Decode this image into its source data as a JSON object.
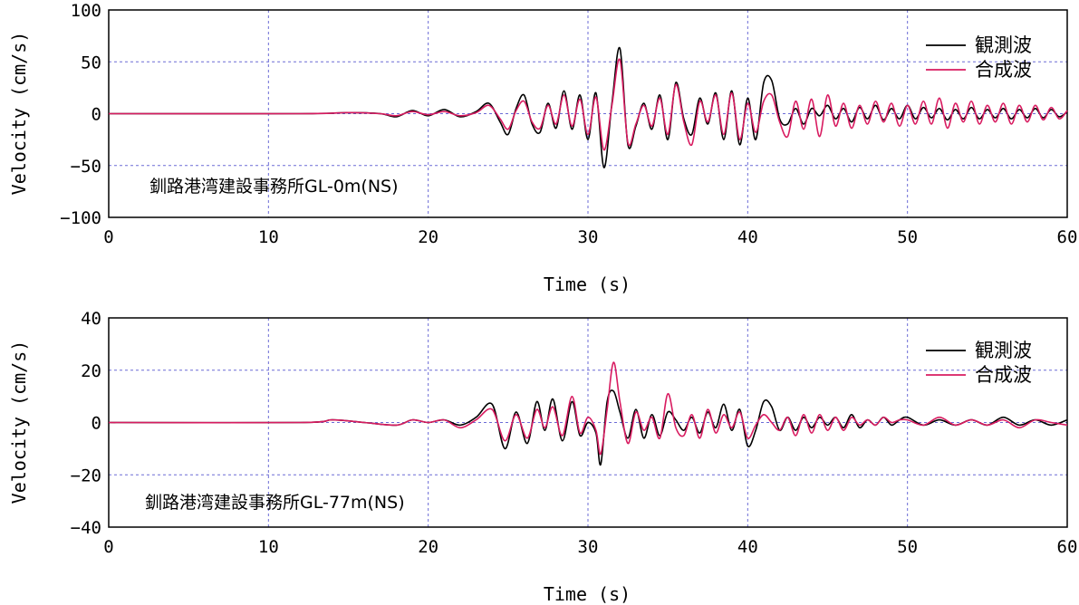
{
  "colors": {
    "observed": "#000000",
    "synthetic": "#d81b60",
    "grid": "#6b6bd6"
  },
  "chart_data": [
    {
      "type": "line",
      "xlabel": "Time (s)",
      "ylabel": "Velocity (cm/s)",
      "annotation": "釧路港湾建設事務所GL-0m(NS)",
      "xlim": [
        0,
        60
      ],
      "ylim": [
        -100,
        100
      ],
      "xticks": [
        "0",
        "10",
        "20",
        "30",
        "40",
        "50",
        "60"
      ],
      "yticks": [
        "100",
        "50",
        "0",
        "−50",
        "−100"
      ],
      "grid": true,
      "legend_position": "top-right",
      "series": [
        {
          "name": "観測波",
          "color": "#000000",
          "x": [
            0,
            12,
            15,
            17,
            18,
            19,
            20,
            21,
            22,
            23,
            23.8,
            24.5,
            25.0,
            25.5,
            26.0,
            26.5,
            27.0,
            27.5,
            28.0,
            28.5,
            29.0,
            29.5,
            30.0,
            30.5,
            31.0,
            31.5,
            32.0,
            32.5,
            33.0,
            33.5,
            34.0,
            34.5,
            35.0,
            35.5,
            36.0,
            36.5,
            37.0,
            37.5,
            38.0,
            38.5,
            39.0,
            39.5,
            40.0,
            40.5,
            41.0,
            41.5,
            42.0,
            42.5,
            43.0,
            43.5,
            44.0,
            44.5,
            45.0,
            45.5,
            46.0,
            46.5,
            47.0,
            47.5,
            48.0,
            48.5,
            49.0,
            49.5,
            50.0,
            50.5,
            51.0,
            51.5,
            52.0,
            52.5,
            53.0,
            53.5,
            54.0,
            54.5,
            55.0,
            55.5,
            56.0,
            56.5,
            57.0,
            57.5,
            58.0,
            58.5,
            59.0,
            59.5,
            60.0
          ],
          "values": [
            0,
            0,
            1,
            0,
            -3,
            3,
            -2,
            4,
            -3,
            2,
            10,
            -8,
            -20,
            5,
            18,
            -10,
            -18,
            10,
            -14,
            22,
            -15,
            18,
            -25,
            20,
            -52,
            10,
            63,
            -30,
            -12,
            10,
            -15,
            18,
            -25,
            30,
            -5,
            -20,
            15,
            -10,
            20,
            -25,
            22,
            -30,
            15,
            -25,
            30,
            32,
            -5,
            -10,
            5,
            -10,
            5,
            -2,
            8,
            -5,
            5,
            -8,
            6,
            -5,
            8,
            -6,
            5,
            -5,
            8,
            -5,
            6,
            -4,
            5,
            -6,
            4,
            -5,
            6,
            -5,
            4,
            -4,
            5,
            -5,
            4,
            -4,
            5,
            -4,
            4,
            -3,
            2
          ]
        },
        {
          "name": "合成波",
          "color": "#d81b60",
          "x": [
            0,
            12,
            15,
            17,
            18,
            19,
            20,
            21,
            22,
            23,
            23.8,
            24.5,
            25.0,
            25.5,
            26.0,
            26.5,
            27.0,
            27.5,
            28.0,
            28.5,
            29.0,
            29.5,
            30.0,
            30.5,
            31.0,
            31.5,
            32.0,
            32.5,
            33.0,
            33.5,
            34.0,
            34.5,
            35.0,
            35.5,
            36.0,
            36.5,
            37.0,
            37.5,
            38.0,
            38.5,
            39.0,
            39.5,
            40.0,
            40.5,
            41.0,
            41.5,
            42.0,
            42.5,
            43.0,
            43.5,
            44.0,
            44.5,
            45.0,
            45.5,
            46.0,
            46.5,
            47.0,
            47.5,
            48.0,
            48.5,
            49.0,
            49.5,
            50.0,
            50.5,
            51.0,
            51.5,
            52.0,
            52.5,
            53.0,
            53.5,
            54.0,
            54.5,
            55.0,
            55.5,
            56.0,
            56.5,
            57.0,
            57.5,
            58.0,
            58.5,
            59.0,
            59.5,
            60.0
          ],
          "values": [
            0,
            0,
            1,
            0,
            -2,
            2,
            -1,
            2,
            -2,
            1,
            8,
            -5,
            -15,
            3,
            12,
            -8,
            -14,
            8,
            -10,
            18,
            -12,
            14,
            -20,
            16,
            -35,
            8,
            52,
            -28,
            -10,
            8,
            -12,
            15,
            -20,
            28,
            -8,
            -30,
            12,
            -8,
            18,
            -20,
            20,
            -25,
            10,
            -18,
            12,
            18,
            -8,
            -22,
            12,
            -15,
            14,
            -22,
            18,
            -12,
            10,
            -14,
            8,
            -10,
            12,
            -8,
            10,
            -12,
            8,
            -10,
            12,
            -10,
            15,
            -14,
            10,
            -8,
            12,
            -10,
            8,
            -8,
            10,
            -10,
            8,
            -8,
            8,
            -6,
            6,
            -5,
            3
          ]
        }
      ]
    },
    {
      "type": "line",
      "xlabel": "Time (s)",
      "ylabel": "Velocity (cm/s)",
      "annotation": "釧路港湾建設事務所GL-77m(NS)",
      "xlim": [
        0,
        60
      ],
      "ylim": [
        -40,
        40
      ],
      "xticks": [
        "0",
        "10",
        "20",
        "30",
        "40",
        "50",
        "60"
      ],
      "yticks": [
        "40",
        "20",
        "0",
        "−20",
        "−40"
      ],
      "grid": true,
      "legend_position": "top-right",
      "series": [
        {
          "name": "観測波",
          "color": "#000000",
          "x": [
            0,
            12,
            14,
            16,
            18,
            19,
            20,
            21,
            22,
            23,
            24,
            24.8,
            25.5,
            26.2,
            26.8,
            27.3,
            27.8,
            28.4,
            29.0,
            29.5,
            30.0,
            30.5,
            30.8,
            31.2,
            31.6,
            32.0,
            32.5,
            33.0,
            33.5,
            34.0,
            34.5,
            35.0,
            35.5,
            36.0,
            36.5,
            37.0,
            37.5,
            38.0,
            38.5,
            39.0,
            39.5,
            40.0,
            40.5,
            41.0,
            41.5,
            42.0,
            42.5,
            43.0,
            43.5,
            44.0,
            44.5,
            45.0,
            45.5,
            46.0,
            46.5,
            47.0,
            47.5,
            48.0,
            48.5,
            49.0,
            49.5,
            50.0,
            51.0,
            52.0,
            53.0,
            54.0,
            55.0,
            56.0,
            57.0,
            58.0,
            59.0,
            60.0
          ],
          "values": [
            0,
            0,
            1,
            0,
            -1,
            1,
            0,
            1,
            -1,
            2,
            7,
            -10,
            4,
            -8,
            8,
            -3,
            9,
            -7,
            8,
            -5,
            0,
            -4,
            -16,
            8,
            12,
            4,
            -6,
            5,
            -6,
            3,
            -5,
            4,
            1,
            -3,
            2,
            -4,
            4,
            -2,
            7,
            -3,
            5,
            -9,
            -3,
            8,
            6,
            -3,
            2,
            -3,
            2,
            -2,
            2,
            -1,
            2,
            -2,
            3,
            -2,
            1,
            -1,
            2,
            -1,
            1,
            2,
            -1,
            1,
            -1,
            1,
            -1,
            2,
            -1,
            1,
            -1,
            1
          ]
        },
        {
          "name": "合成波",
          "color": "#d81b60",
          "x": [
            0,
            12,
            14,
            16,
            18,
            19,
            20,
            21,
            22,
            23,
            24,
            24.8,
            25.5,
            26.2,
            26.8,
            27.3,
            27.8,
            28.4,
            29.0,
            29.5,
            30.0,
            30.5,
            30.8,
            31.2,
            31.6,
            32.0,
            32.5,
            33.0,
            33.5,
            34.0,
            34.5,
            35.0,
            35.5,
            36.0,
            36.5,
            37.0,
            37.5,
            38.0,
            38.5,
            39.0,
            39.5,
            40.0,
            40.5,
            41.0,
            41.5,
            42.0,
            42.5,
            43.0,
            43.5,
            44.0,
            44.5,
            45.0,
            45.5,
            46.0,
            46.5,
            47.0,
            47.5,
            48.0,
            48.5,
            49.0,
            49.5,
            50.0,
            51.0,
            52.0,
            53.0,
            54.0,
            55.0,
            56.0,
            57.0,
            58.0,
            59.0,
            60.0
          ],
          "values": [
            0,
            0,
            1,
            0,
            -1,
            1,
            0,
            1,
            -2,
            1,
            5,
            -7,
            3,
            -6,
            5,
            -2,
            6,
            -5,
            10,
            -4,
            2,
            -3,
            -12,
            5,
            23,
            8,
            -8,
            4,
            -3,
            2,
            -6,
            11,
            -2,
            -5,
            3,
            -6,
            5,
            -4,
            3,
            -2,
            4,
            -6,
            -1,
            3,
            0,
            -3,
            2,
            -5,
            3,
            -4,
            3,
            -3,
            2,
            -3,
            2,
            -1,
            1,
            -1,
            2,
            0,
            1,
            1,
            -1,
            2,
            -1,
            1,
            -1,
            1,
            -2,
            1,
            0,
            -1
          ]
        }
      ]
    }
  ]
}
